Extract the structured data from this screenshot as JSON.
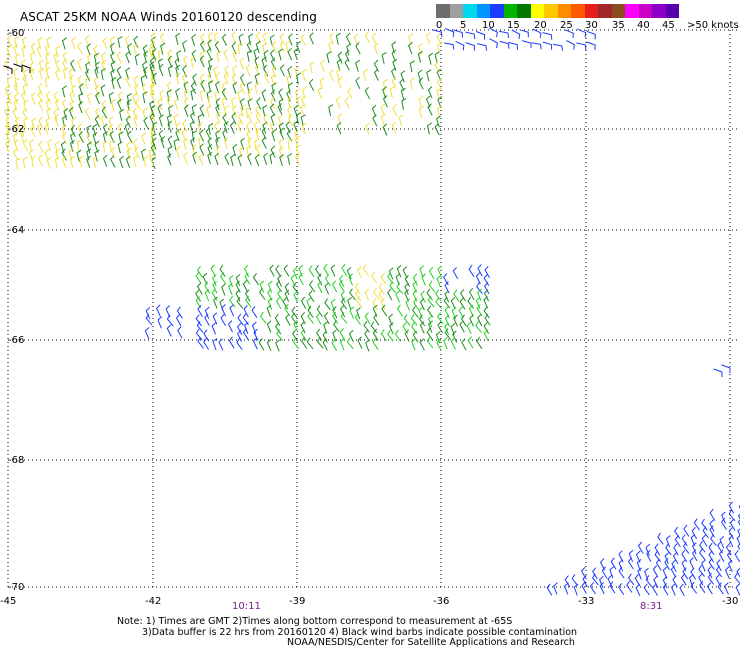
{
  "title": "ASCAT 25KM NOAA Winds 20160120 descending",
  "legend": {
    "colors": [
      "#6e6e6e",
      "#a0a0a0",
      "#00d8f0",
      "#0096ff",
      "#1c3cff",
      "#00b400",
      "#007800",
      "#ffff00",
      "#ffc800",
      "#ff8c00",
      "#ff5a00",
      "#e61e1e",
      "#a02828",
      "#8c4b1e",
      "#ff00ff",
      "#c800c8",
      "#8c00c8",
      "#5a00aa"
    ],
    "labels": [
      "0",
      "5",
      "10",
      "15",
      "20",
      "25",
      "30",
      "35",
      "40",
      "45",
      ">50 knots"
    ]
  },
  "map": {
    "lat_labels": [
      "-60",
      "-62",
      "-64",
      "-66",
      "-68",
      "-70"
    ],
    "lon_labels": [
      "-45",
      "-42",
      "-39",
      "-36",
      "-33",
      "-30"
    ],
    "wind_colors": {
      "yellow": "#f0e040",
      "dark_green": "#1e8c1e",
      "green": "#1ed21e",
      "blue": "#1c3cff",
      "black": "#000000"
    }
  },
  "times": [
    {
      "label": "10:11"
    },
    {
      "label": "8:31"
    }
  ],
  "notes": [
    "Note: 1) Times are GMT 2)Times along bottom correspond to measurement at -65S",
    "3)Data buffer is 22 hrs from 20160120 4) Black wind barbs indicate possible contamination",
    "NOAA/NESDIS/Center for Satellite Applications and Research"
  ]
}
